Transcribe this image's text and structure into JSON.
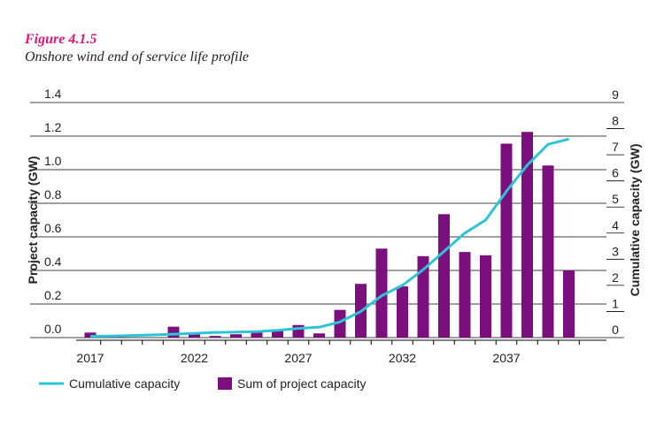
{
  "figure": {
    "label": "Figure 4.1.5",
    "title": "Onshore wind end of service life profile"
  },
  "colors": {
    "accent": "#e0157a",
    "bar": "#7b0f7e",
    "line": "#2ec4d8",
    "grid": "#000000"
  },
  "chart_data": {
    "type": "bar",
    "title": "Onshore wind end of service life profile",
    "xlabel": "",
    "ylabel": "Project capacity (GW)",
    "y2label": "Cumulative capacity (GW)",
    "ylim": [
      0,
      1.4
    ],
    "y2lim": [
      0,
      9
    ],
    "yticks": [
      "0.0",
      "0.2",
      "0.4",
      "0.6",
      "0.8",
      "1.0",
      "1.2",
      "1.4"
    ],
    "y2ticks": [
      "0",
      "1",
      "2",
      "3",
      "4",
      "5",
      "6",
      "7",
      "8",
      "9"
    ],
    "xticks": [
      "2017",
      "2022",
      "2027",
      "2032",
      "2037"
    ],
    "years": [
      2017,
      2018,
      2019,
      2020,
      2021,
      2022,
      2023,
      2024,
      2025,
      2026,
      2027,
      2028,
      2029,
      2030,
      2031,
      2032,
      2033,
      2034,
      2035,
      2036,
      2037,
      2038,
      2039,
      2040
    ],
    "series": [
      {
        "name": "Sum of project capacity",
        "type": "bar",
        "axis": "left",
        "values": [
          0.03,
          0.015,
          0.0,
          0.0,
          0.065,
          0.02,
          0.01,
          0.02,
          0.035,
          0.05,
          0.075,
          0.025,
          0.165,
          0.32,
          0.53,
          0.305,
          0.485,
          0.735,
          0.51,
          0.49,
          1.155,
          1.225,
          1.025,
          0.4
        ]
      },
      {
        "name": "Cumulative capacity",
        "type": "line",
        "axis": "right",
        "values": [
          0.05,
          0.06,
          0.08,
          0.1,
          0.13,
          0.16,
          0.2,
          0.21,
          0.23,
          0.28,
          0.35,
          0.4,
          0.6,
          1.0,
          1.6,
          2.0,
          2.6,
          3.3,
          4.0,
          4.5,
          5.6,
          6.6,
          7.4,
          7.6
        ]
      }
    ],
    "legend": {
      "position": "bottom-left",
      "items": [
        "Cumulative capacity",
        "Sum of project capacity"
      ]
    },
    "grid": true
  }
}
